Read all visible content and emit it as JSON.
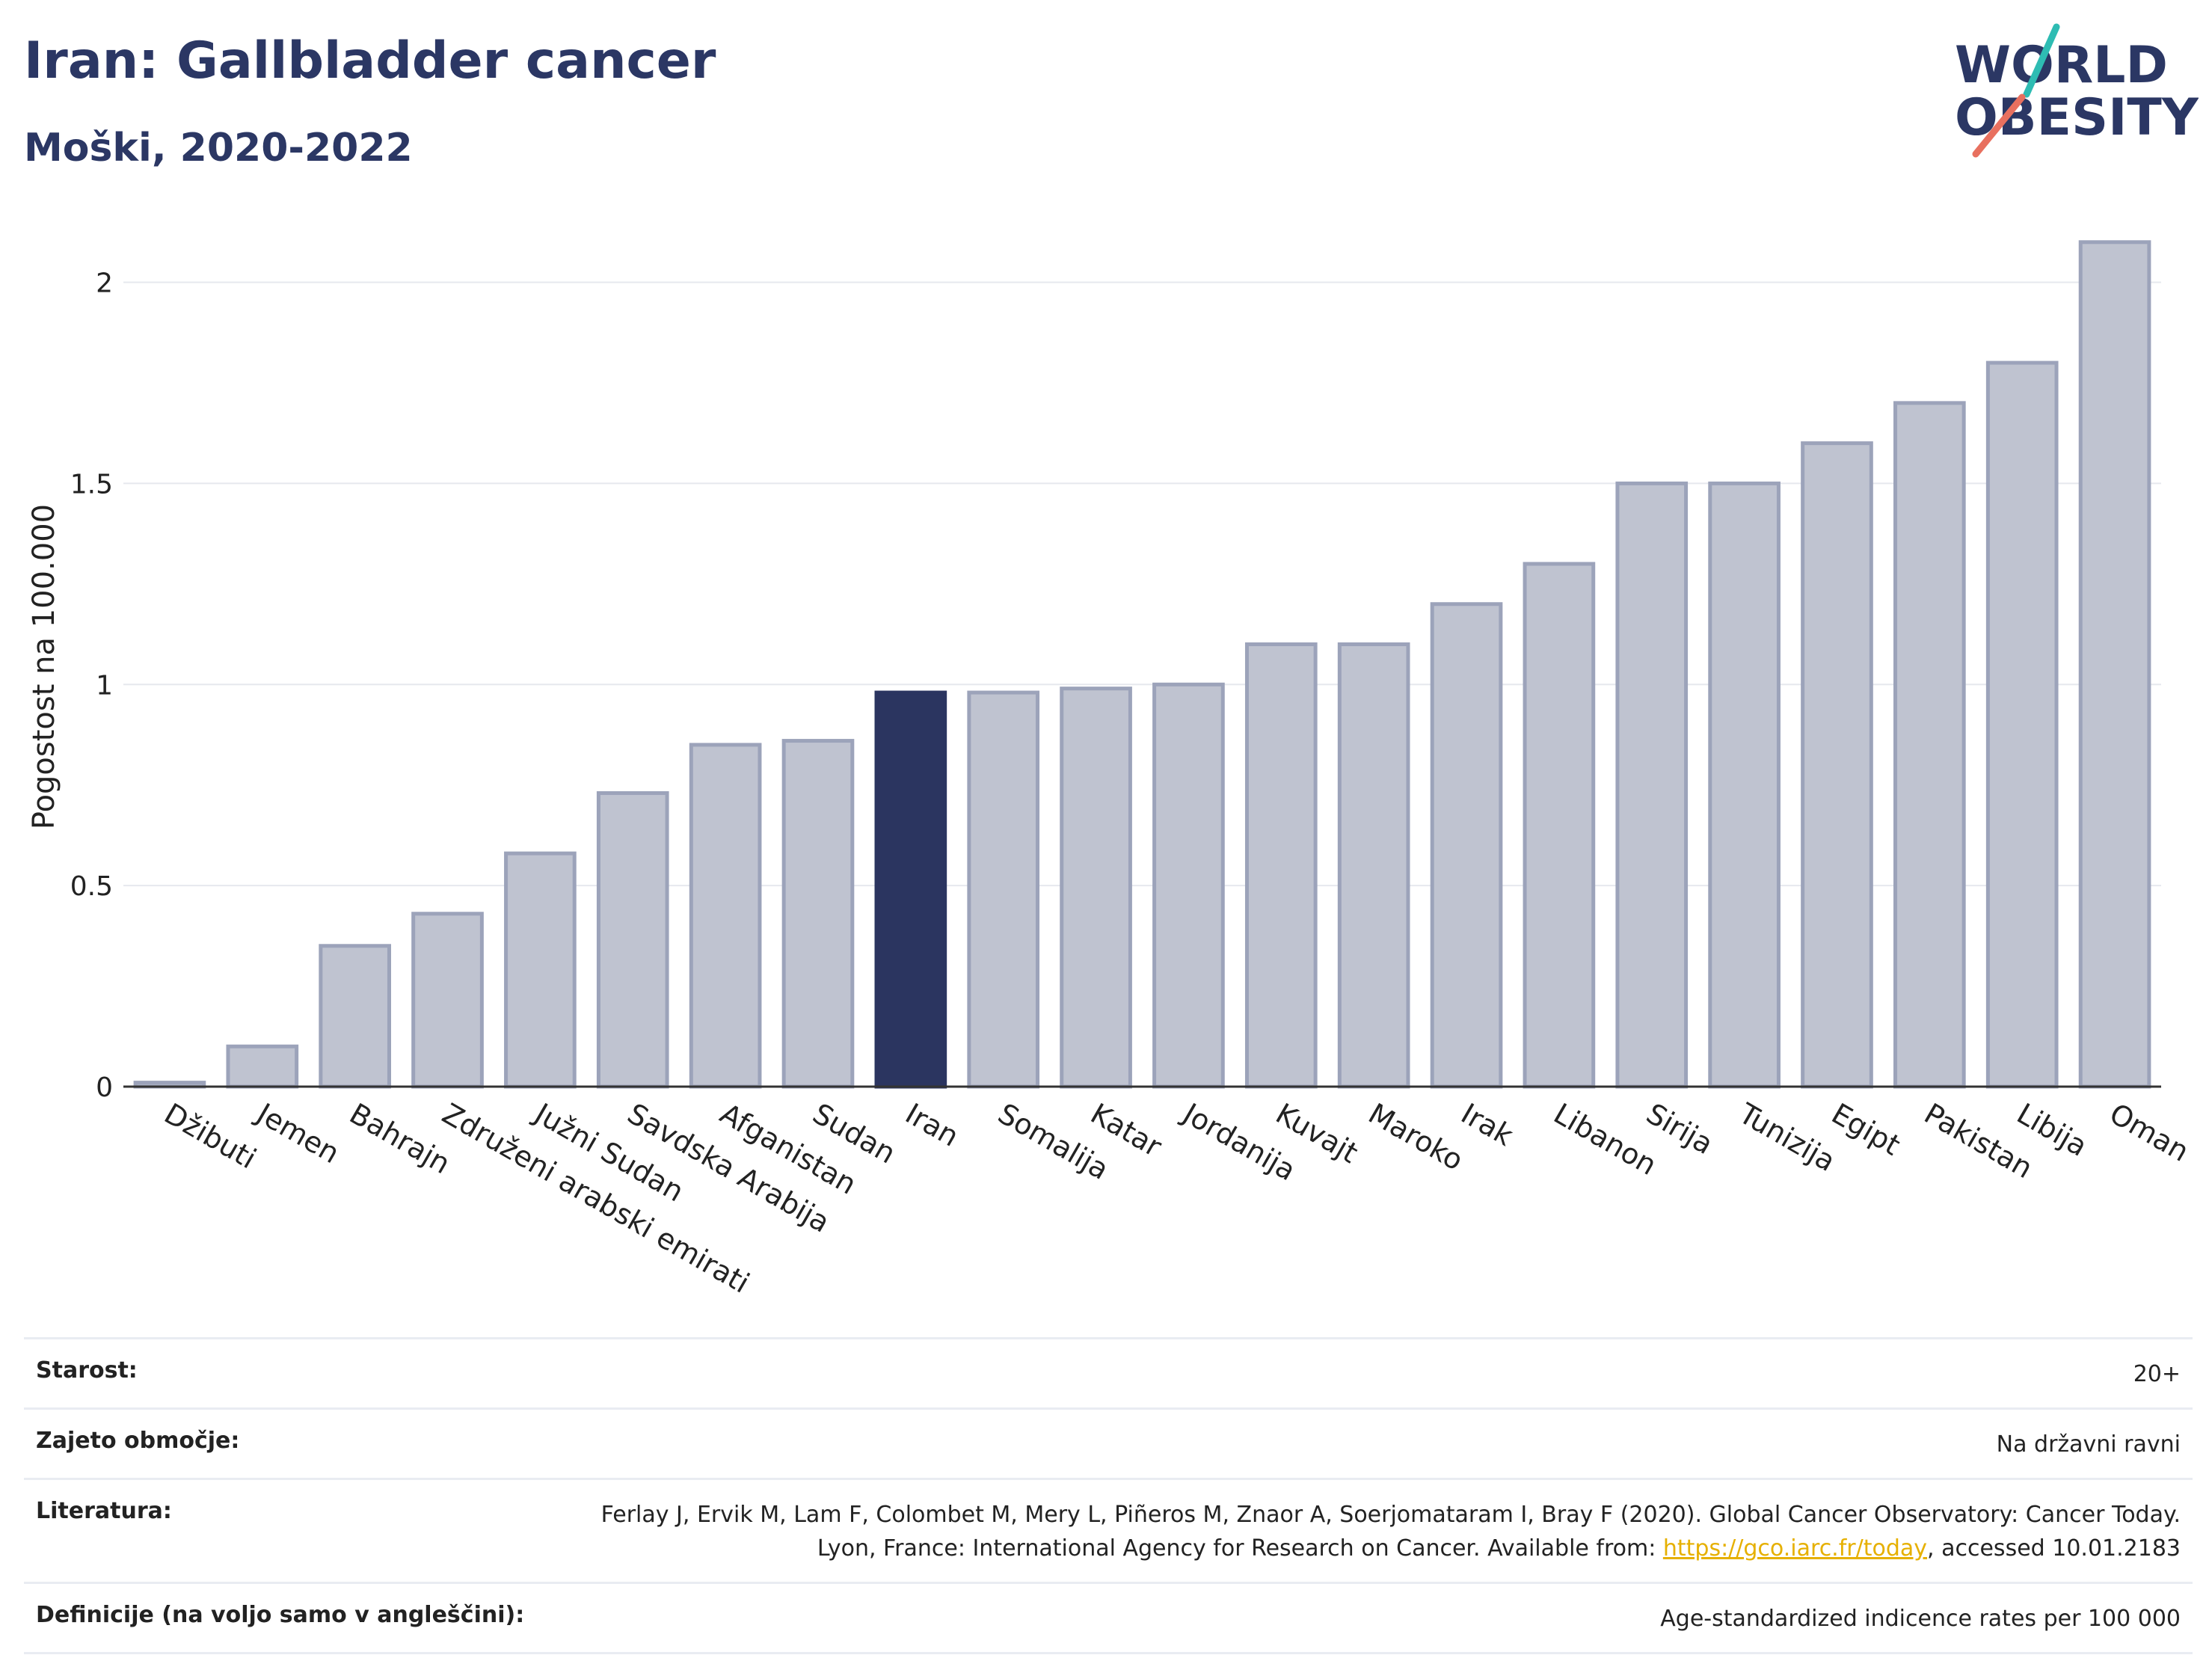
{
  "header": {
    "title": "Iran: Gallbladder cancer",
    "subtitle": "Moški, 2020-2022",
    "logo_line1": "WORLD",
    "logo_line2": "OBESITY"
  },
  "chart_data": {
    "type": "bar",
    "title": "Iran: Gallbladder cancer",
    "subtitle": "Moški, 2020-2022",
    "ylabel": "Pogostost na 100.000",
    "xlabel": "",
    "ylim": [
      0,
      2.2
    ],
    "yticks": [
      0,
      0.5,
      1,
      1.5,
      2
    ],
    "ytick_labels": [
      "0",
      "0.5",
      "1",
      "1.5",
      "2"
    ],
    "grid": true,
    "legend": "none",
    "highlight": "Iran",
    "categories": [
      "Džibuti",
      "Jemen",
      "Bahrajn",
      "Združeni arabski emirati",
      "Južni Sudan",
      "Savdska Arabija",
      "Afganistan",
      "Sudan",
      "Iran",
      "Somalija",
      "Katar",
      "Jordanija",
      "Kuvajt",
      "Maroko",
      "Irak",
      "Libanon",
      "Sirija",
      "Tunizija",
      "Egipt",
      "Pakistan",
      "Libija",
      "Oman"
    ],
    "values": [
      0.01,
      0.1,
      0.35,
      0.43,
      0.58,
      0.73,
      0.85,
      0.86,
      0.98,
      0.98,
      0.99,
      1.0,
      1.1,
      1.1,
      1.2,
      1.3,
      1.5,
      1.5,
      1.6,
      1.7,
      1.8,
      2.1
    ]
  },
  "colors": {
    "bar": "#bfc3d0",
    "bar_stroke": "#9ca3ba",
    "highlight": "#2b3560",
    "title": "#2b3764",
    "logo_teal": "#2ebcb3",
    "logo_coral": "#e8705f",
    "link": "#e6b000"
  },
  "info": {
    "age_label": "Starost:",
    "age_value": "20+",
    "coverage_label": "Zajeto območje:",
    "coverage_value": "Na državni ravni",
    "ref_label": "Literatura:",
    "ref_text_1": "Ferlay J, Ervik M, Lam F, Colombet M, Mery L, Piñeros M, Znaor A, Soerjomataram I, Bray F (2020). Global Cancer Observatory: Cancer Today. Lyon, France: International Agency for Research on Cancer. Available from: ",
    "ref_link": "https://gco.iarc.fr/today",
    "ref_text_2": ", accessed 10.01.2183",
    "def_label": "Definicije (na voljo samo v angleščini):",
    "def_value": "Age-standardized indicence rates per 100 000"
  }
}
